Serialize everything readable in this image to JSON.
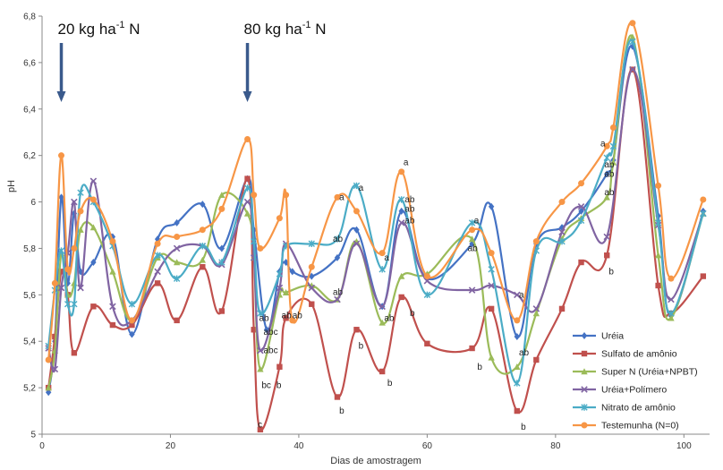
{
  "chart_data": {
    "type": "line",
    "xlabel": "Dias de amostragem",
    "ylabel": "pH",
    "xlim": [
      0,
      104
    ],
    "ylim": [
      5.0,
      6.8
    ],
    "x_ticks": [
      "0",
      "20",
      "40",
      "60",
      "80",
      "100"
    ],
    "y_ticks": [
      "5",
      "5,2",
      "5,4",
      "5,6",
      "5,8",
      "6",
      "6,2",
      "6,4",
      "6,6",
      "6,8"
    ],
    "grid": false,
    "legend_position": "bottom-right",
    "annotations": [
      {
        "text": "20 kg ha-1 N",
        "x": 3
      },
      {
        "text": "80 kg ha-1 N",
        "x": 32
      }
    ],
    "series": [
      {
        "name": "Uréia",
        "color": "#4472C4",
        "marker": "diamond",
        "x": [
          1,
          2,
          3,
          4,
          5,
          6,
          8,
          11,
          14,
          18,
          21,
          25,
          28,
          32,
          33,
          35,
          37,
          38,
          39,
          42,
          46,
          49,
          53,
          56,
          60,
          67,
          70,
          74,
          77,
          81,
          84,
          88,
          89,
          92,
          96,
          98,
          103
        ],
        "y": [
          5.18,
          5.4,
          6.02,
          5.65,
          5.95,
          5.7,
          5.74,
          5.85,
          5.43,
          5.84,
          5.91,
          5.99,
          5.8,
          6.1,
          5.88,
          5.45,
          5.7,
          5.74,
          5.7,
          5.68,
          5.76,
          5.88,
          5.55,
          5.96,
          5.67,
          5.82,
          5.98,
          5.42,
          5.82,
          5.89,
          5.96,
          6.12,
          6.18,
          6.67,
          5.94,
          5.51,
          5.96
        ]
      },
      {
        "name": "Sulfato de amônio",
        "color": "#C0504D",
        "marker": "square",
        "x": [
          1,
          2,
          3,
          4,
          5,
          8,
          11,
          14,
          18,
          21,
          25,
          28,
          32,
          33,
          34,
          37,
          38,
          42,
          46,
          49,
          53,
          56,
          60,
          67,
          70,
          74,
          77,
          81,
          84,
          88,
          92,
          96,
          98,
          103
        ],
        "y": [
          5.2,
          5.42,
          5.7,
          5.6,
          5.35,
          5.55,
          5.47,
          5.47,
          5.65,
          5.49,
          5.72,
          5.53,
          6.1,
          5.45,
          5.02,
          5.29,
          5.5,
          5.56,
          5.16,
          5.45,
          5.27,
          5.59,
          5.39,
          5.37,
          5.54,
          5.1,
          5.32,
          5.54,
          5.74,
          5.77,
          6.57,
          5.64,
          5.52,
          5.68
        ]
      },
      {
        "name": "Super N (Uréia+NPBT)",
        "color": "#9BBB59",
        "marker": "triangle",
        "x": [
          1,
          2,
          3,
          4,
          5,
          6,
          8,
          11,
          14,
          18,
          21,
          25,
          28,
          32,
          33,
          34,
          37,
          38,
          42,
          46,
          49,
          53,
          56,
          60,
          67,
          70,
          74,
          77,
          81,
          84,
          88,
          89,
          92,
          96,
          98,
          103
        ],
        "y": [
          5.2,
          5.36,
          5.78,
          5.6,
          5.65,
          5.88,
          5.89,
          5.7,
          5.49,
          5.76,
          5.74,
          5.75,
          6.03,
          5.95,
          5.76,
          5.28,
          5.6,
          5.61,
          5.64,
          5.58,
          5.83,
          5.48,
          5.68,
          5.69,
          5.84,
          5.33,
          5.29,
          5.52,
          5.84,
          5.93,
          6.02,
          6.17,
          6.71,
          5.77,
          5.5,
          5.95
        ]
      },
      {
        "name": "Uréia+Polímero",
        "color": "#8064A2",
        "marker": "x",
        "x": [
          1,
          2,
          3,
          4,
          5,
          6,
          8,
          11,
          14,
          18,
          21,
          25,
          28,
          32,
          33,
          34,
          37,
          38,
          42,
          46,
          49,
          53,
          56,
          60,
          67,
          70,
          74,
          77,
          81,
          84,
          88,
          92,
          96,
          98,
          103
        ],
        "y": [
          5.37,
          5.28,
          5.63,
          5.78,
          6.0,
          5.63,
          6.09,
          5.55,
          5.49,
          5.7,
          5.8,
          5.81,
          5.73,
          6.0,
          5.76,
          5.36,
          5.63,
          5.82,
          5.63,
          5.58,
          5.82,
          5.55,
          5.91,
          5.66,
          5.62,
          5.64,
          5.6,
          5.54,
          5.87,
          5.98,
          5.85,
          6.57,
          5.9,
          5.58,
          5.95
        ]
      },
      {
        "name": "Nitrato de amônio",
        "color": "#4BACC6",
        "marker": "star",
        "x": [
          1,
          2,
          3,
          4,
          5,
          6,
          8,
          11,
          14,
          18,
          21,
          25,
          28,
          32,
          33,
          34,
          37,
          38,
          42,
          46,
          49,
          53,
          56,
          60,
          67,
          70,
          74,
          77,
          81,
          84,
          88,
          89,
          92,
          96,
          98,
          103
        ],
        "y": [
          5.38,
          5.62,
          5.79,
          5.56,
          5.56,
          6.04,
          6.0,
          5.81,
          5.56,
          5.77,
          5.67,
          5.81,
          5.74,
          6.06,
          5.83,
          5.52,
          5.69,
          5.81,
          5.82,
          5.84,
          6.07,
          5.71,
          6.01,
          5.6,
          5.91,
          5.71,
          5.22,
          5.79,
          5.83,
          5.92,
          6.19,
          6.24,
          6.69,
          5.91,
          5.52,
          5.95
        ]
      },
      {
        "name": "Testemunha (N=0)",
        "color": "#F79646",
        "marker": "circle",
        "x": [
          1,
          2,
          3,
          4,
          5,
          6,
          8,
          11,
          14,
          18,
          21,
          25,
          28,
          32,
          33,
          34,
          37,
          38,
          39,
          42,
          46,
          49,
          53,
          56,
          60,
          67,
          70,
          74,
          77,
          81,
          84,
          88,
          89,
          92,
          96,
          98,
          103
        ],
        "y": [
          5.32,
          5.65,
          6.2,
          5.71,
          5.8,
          5.96,
          6.01,
          5.83,
          5.49,
          5.82,
          5.85,
          5.88,
          5.97,
          6.27,
          6.03,
          5.8,
          5.93,
          6.03,
          5.49,
          5.72,
          6.02,
          5.96,
          5.78,
          6.13,
          5.68,
          5.88,
          5.78,
          5.49,
          5.83,
          6.0,
          6.08,
          6.24,
          6.32,
          6.77,
          6.07,
          5.67,
          6.01
        ]
      }
    ],
    "significance_labels": [
      {
        "text": "ab",
        "x": 33.8,
        "y": 5.5
      },
      {
        "text": "abc",
        "x": 34.5,
        "y": 5.44
      },
      {
        "text": "abc",
        "x": 34.5,
        "y": 5.36
      },
      {
        "text": "bc",
        "x": 34.2,
        "y": 5.21
      },
      {
        "text": "c",
        "x": 33.6,
        "y": 5.04
      },
      {
        "text": "ab",
        "x": 37.3,
        "y": 5.51
      },
      {
        "text": "ab",
        "x": 39,
        "y": 5.51
      },
      {
        "text": "b",
        "x": 36.5,
        "y": 5.21
      },
      {
        "text": "a",
        "x": 46.3,
        "y": 6.02
      },
      {
        "text": "ab",
        "x": 45.3,
        "y": 5.84
      },
      {
        "text": "ab",
        "x": 45.3,
        "y": 5.61
      },
      {
        "text": "b",
        "x": 46.3,
        "y": 5.1
      },
      {
        "text": "a",
        "x": 49.3,
        "y": 6.06
      },
      {
        "text": "b",
        "x": 49.3,
        "y": 5.38
      },
      {
        "text": "ab",
        "x": 53.3,
        "y": 5.5
      },
      {
        "text": "a",
        "x": 53.3,
        "y": 5.76
      },
      {
        "text": "b",
        "x": 53.8,
        "y": 5.22
      },
      {
        "text": "a",
        "x": 56.3,
        "y": 6.17
      },
      {
        "text": "ab",
        "x": 56.5,
        "y": 6.01
      },
      {
        "text": "ab",
        "x": 56.5,
        "y": 5.97
      },
      {
        "text": "ab",
        "x": 56.5,
        "y": 5.92
      },
      {
        "text": "b",
        "x": 57.3,
        "y": 5.52
      },
      {
        "text": "a",
        "x": 67.3,
        "y": 5.92
      },
      {
        "text": "ab",
        "x": 66.3,
        "y": 5.8
      },
      {
        "text": "b",
        "x": 67.8,
        "y": 5.29
      },
      {
        "text": "a",
        "x": 74.3,
        "y": 5.6
      },
      {
        "text": "ab",
        "x": 74.3,
        "y": 5.35
      },
      {
        "text": "b",
        "x": 74.6,
        "y": 5.03
      },
      {
        "text": "a",
        "x": 87,
        "y": 6.25
      },
      {
        "text": "ab",
        "x": 87.6,
        "y": 6.16
      },
      {
        "text": "ab",
        "x": 87.6,
        "y": 6.12
      },
      {
        "text": "ab",
        "x": 87.6,
        "y": 6.04
      },
      {
        "text": "b",
        "x": 88.3,
        "y": 5.7
      }
    ]
  }
}
